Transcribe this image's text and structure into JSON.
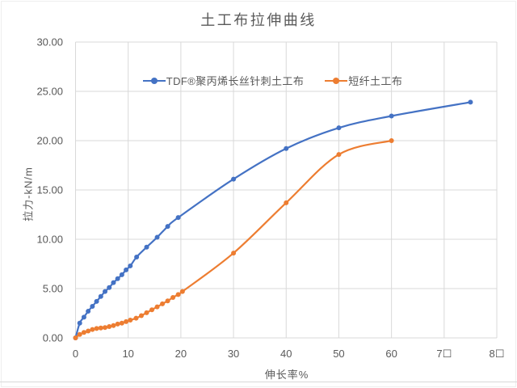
{
  "page": {
    "border_color": "#efefef",
    "divider_color": "#d9d9d9",
    "background": "#ffffff"
  },
  "chart_data": {
    "type": "line",
    "title": "土工布拉伸曲线",
    "xlabel": "伸长率%",
    "ylabel": "拉力-kN/m",
    "xlim": [
      0,
      80
    ],
    "ylim": [
      0,
      30
    ],
    "grid": true,
    "gridline_color": "#d9d9d9",
    "text_color": "#595959",
    "legend_position": "top-center",
    "x_ticks": [
      0,
      10,
      20,
      30,
      40,
      50,
      60,
      70,
      80
    ],
    "x_tick_labels": [
      "0",
      "10",
      "20",
      "30",
      "40",
      "50",
      "60",
      "7☐",
      "8☐"
    ],
    "y_ticks": [
      0,
      5,
      10,
      15,
      20,
      25,
      30
    ],
    "y_tick_labels": [
      "0.00",
      "5.00",
      "10.00",
      "15.00",
      "20.00",
      "25.00",
      "30.00"
    ],
    "series": [
      {
        "name": "TDF®聚丙烯长丝针刺土工布",
        "color": "#4472C4",
        "points": [
          [
            0,
            0
          ],
          [
            0.8,
            1.5
          ],
          [
            1.6,
            2.1
          ],
          [
            2.4,
            2.7
          ],
          [
            3.2,
            3.2
          ],
          [
            4.0,
            3.7
          ],
          [
            4.8,
            4.2
          ],
          [
            5.6,
            4.7
          ],
          [
            6.4,
            5.1
          ],
          [
            7.2,
            5.6
          ],
          [
            8.0,
            6.0
          ],
          [
            8.8,
            6.4
          ],
          [
            9.6,
            6.9
          ],
          [
            10.4,
            7.3
          ],
          [
            11.6,
            8.2
          ],
          [
            13.5,
            9.2
          ],
          [
            15.5,
            10.2
          ],
          [
            17.5,
            11.3
          ],
          [
            19.5,
            12.2
          ],
          [
            30,
            16.1
          ],
          [
            40,
            19.2
          ],
          [
            50,
            21.3
          ],
          [
            60,
            22.5
          ],
          [
            75,
            23.9
          ]
        ]
      },
      {
        "name": "短纤土工布",
        "color": "#ED7D31",
        "points": [
          [
            0,
            0
          ],
          [
            0.8,
            0.35
          ],
          [
            1.6,
            0.55
          ],
          [
            2.4,
            0.7
          ],
          [
            3.2,
            0.85
          ],
          [
            4.0,
            0.95
          ],
          [
            4.8,
            1.0
          ],
          [
            5.6,
            1.05
          ],
          [
            6.4,
            1.15
          ],
          [
            7.2,
            1.25
          ],
          [
            8.0,
            1.4
          ],
          [
            8.8,
            1.5
          ],
          [
            9.6,
            1.65
          ],
          [
            10.4,
            1.8
          ],
          [
            11.5,
            2.0
          ],
          [
            12.5,
            2.25
          ],
          [
            13.5,
            2.55
          ],
          [
            14.5,
            2.85
          ],
          [
            15.5,
            3.15
          ],
          [
            16.5,
            3.45
          ],
          [
            17.5,
            3.75
          ],
          [
            18.5,
            4.1
          ],
          [
            19.5,
            4.4
          ],
          [
            20.3,
            4.7
          ],
          [
            30,
            8.6
          ],
          [
            40,
            13.7
          ],
          [
            50,
            18.6
          ],
          [
            60,
            20.0
          ]
        ]
      }
    ]
  }
}
